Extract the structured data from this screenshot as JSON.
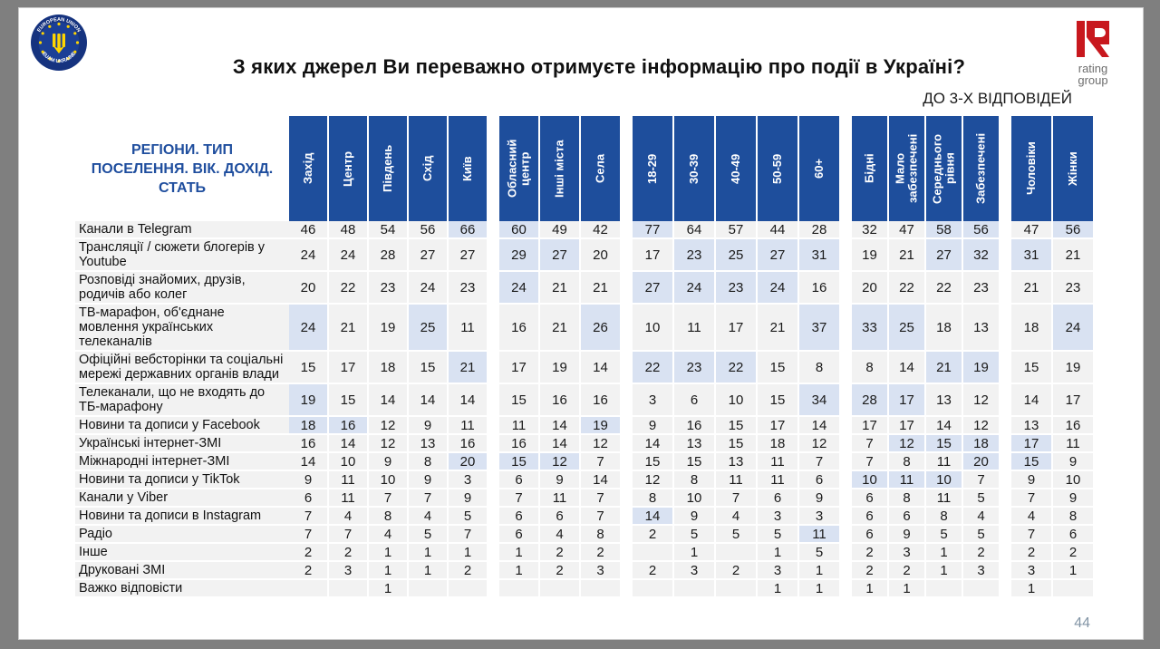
{
  "title": "З яких джерел Ви переважно отримуєте інформацію про події в Україні?",
  "subtitle": "ДО 3-Х ВІДПОВІДЕЙ",
  "page_number": "44",
  "logos": {
    "eu_badge_top": "EUROPEAN UNION",
    "eu_badge_bottom": "EUAM UKRAINE",
    "rating_letter": "R",
    "rating_text_line1": "rating",
    "rating_text_line2": "group"
  },
  "colors": {
    "header_bg": "#1e4e9c",
    "header_text": "#ffffff",
    "row_header_text": "#1f4e9e",
    "cell_bg": "#f2f2f2",
    "cell_highlight": "#d9e2f2",
    "frame_gray": "#7f7f7f",
    "rating_red": "#c8181e"
  },
  "chart_data": {
    "type": "table",
    "title": "З яких джерел Ви переважно отримуєте інформацію про події в Україні?",
    "note": "ДО 3-Х ВІДПОВІДЕЙ",
    "row_header": "РЕГІОНИ. ТИП ПОСЕЛЕННЯ. ВІК. ДОХІД. СТАТЬ",
    "column_groups": [
      {
        "name": "regions",
        "columns": [
          "Захід",
          "Центр",
          "Південь",
          "Схід",
          "Київ"
        ]
      },
      {
        "name": "settlement-type",
        "columns": [
          "Обласний центр",
          "Інші міста",
          "Села"
        ]
      },
      {
        "name": "age",
        "columns": [
          "18-29",
          "30-39",
          "40-49",
          "50-59",
          "60+"
        ]
      },
      {
        "name": "income",
        "columns": [
          "Бідні",
          "Мало забезпечені",
          "Середнього рівня",
          "Забезпечені"
        ]
      },
      {
        "name": "gender",
        "columns": [
          "Чоловіки",
          "Жінки"
        ]
      }
    ],
    "rows": [
      {
        "label": "Канали в Telegram",
        "values": [
          [
            46,
            48,
            54,
            56,
            66
          ],
          [
            60,
            49,
            42
          ],
          [
            77,
            64,
            57,
            44,
            28
          ],
          [
            32,
            47,
            58,
            56
          ],
          [
            47,
            56
          ]
        ],
        "highlights": [
          [
            4
          ],
          [
            0
          ],
          [
            0
          ],
          [
            2,
            3
          ],
          [
            1
          ]
        ]
      },
      {
        "label": "Трансляції / сюжети блогерів у Youtube",
        "values": [
          [
            24,
            24,
            28,
            27,
            27
          ],
          [
            29,
            27,
            20
          ],
          [
            17,
            23,
            25,
            27,
            31
          ],
          [
            19,
            21,
            27,
            32
          ],
          [
            31,
            21
          ]
        ],
        "highlights": [
          [],
          [
            0,
            1
          ],
          [
            1,
            2,
            3,
            4
          ],
          [
            2,
            3
          ],
          [
            0
          ]
        ]
      },
      {
        "label": "Розповіді знайомих, друзів, родичів або колег",
        "values": [
          [
            20,
            22,
            23,
            24,
            23
          ],
          [
            24,
            21,
            21
          ],
          [
            27,
            24,
            23,
            24,
            16
          ],
          [
            20,
            22,
            22,
            23
          ],
          [
            21,
            23
          ]
        ],
        "highlights": [
          [],
          [
            0
          ],
          [
            0,
            1,
            2,
            3
          ],
          [],
          []
        ]
      },
      {
        "label": "ТВ-марафон, об'єднане мовлення українських телеканалів",
        "values": [
          [
            24,
            21,
            19,
            25,
            11
          ],
          [
            16,
            21,
            26
          ],
          [
            10,
            11,
            17,
            21,
            37
          ],
          [
            33,
            25,
            18,
            13
          ],
          [
            18,
            24
          ]
        ],
        "highlights": [
          [
            0,
            3
          ],
          [
            2
          ],
          [
            4
          ],
          [
            0,
            1
          ],
          [
            1
          ]
        ]
      },
      {
        "label": "Офіційні вебсторінки та соціальні мережі державних органів влади",
        "values": [
          [
            15,
            17,
            18,
            15,
            21
          ],
          [
            17,
            19,
            14
          ],
          [
            22,
            23,
            22,
            15,
            8
          ],
          [
            8,
            14,
            21,
            19
          ],
          [
            15,
            19
          ]
        ],
        "highlights": [
          [
            4
          ],
          [],
          [
            0,
            1,
            2
          ],
          [
            2,
            3
          ],
          []
        ]
      },
      {
        "label": "Телеканали, що не входять до ТБ-марафону",
        "values": [
          [
            19,
            15,
            14,
            14,
            14
          ],
          [
            15,
            16,
            16
          ],
          [
            3,
            6,
            10,
            15,
            34
          ],
          [
            28,
            17,
            13,
            12
          ],
          [
            14,
            17
          ]
        ],
        "highlights": [
          [
            0
          ],
          [],
          [
            4
          ],
          [
            0,
            1
          ],
          []
        ]
      },
      {
        "label": "Новини та дописи у Facebook",
        "values": [
          [
            18,
            16,
            12,
            9,
            11
          ],
          [
            11,
            14,
            19
          ],
          [
            9,
            16,
            15,
            17,
            14
          ],
          [
            17,
            17,
            14,
            12
          ],
          [
            13,
            16
          ]
        ],
        "highlights": [
          [
            0,
            1
          ],
          [
            2
          ],
          [],
          [],
          []
        ]
      },
      {
        "label": "Українські інтернет-ЗМІ",
        "values": [
          [
            16,
            14,
            12,
            13,
            16
          ],
          [
            16,
            14,
            12
          ],
          [
            14,
            13,
            15,
            18,
            12
          ],
          [
            7,
            12,
            15,
            18
          ],
          [
            17,
            11
          ]
        ],
        "highlights": [
          [],
          [],
          [],
          [
            1,
            2,
            3
          ],
          [
            0
          ]
        ]
      },
      {
        "label": "Міжнародні інтернет-ЗМІ",
        "values": [
          [
            14,
            10,
            9,
            8,
            20
          ],
          [
            15,
            12,
            7
          ],
          [
            15,
            15,
            13,
            11,
            7
          ],
          [
            7,
            8,
            11,
            20
          ],
          [
            15,
            9
          ]
        ],
        "highlights": [
          [
            4
          ],
          [
            0,
            1
          ],
          [],
          [
            3
          ],
          [
            0
          ]
        ]
      },
      {
        "label": "Новини та дописи у TikTok",
        "values": [
          [
            9,
            11,
            10,
            9,
            3
          ],
          [
            6,
            9,
            14
          ],
          [
            12,
            8,
            11,
            11,
            6
          ],
          [
            10,
            11,
            10,
            7
          ],
          [
            9,
            10
          ]
        ],
        "highlights": [
          [],
          [],
          [],
          [
            0,
            1,
            2
          ],
          []
        ]
      },
      {
        "label": "Канали у Viber",
        "values": [
          [
            6,
            11,
            7,
            7,
            9
          ],
          [
            7,
            11,
            7
          ],
          [
            8,
            10,
            7,
            6,
            9
          ],
          [
            6,
            8,
            11,
            5
          ],
          [
            7,
            9
          ]
        ],
        "highlights": [
          [],
          [],
          [],
          [],
          []
        ]
      },
      {
        "label": "Новини та дописи в Instagram",
        "values": [
          [
            7,
            4,
            8,
            4,
            5
          ],
          [
            6,
            6,
            7
          ],
          [
            14,
            9,
            4,
            3,
            3
          ],
          [
            6,
            6,
            8,
            4
          ],
          [
            4,
            8
          ]
        ],
        "highlights": [
          [],
          [],
          [
            0
          ],
          [],
          []
        ]
      },
      {
        "label": "Радіо",
        "values": [
          [
            7,
            7,
            4,
            5,
            7
          ],
          [
            6,
            4,
            8
          ],
          [
            2,
            5,
            5,
            5,
            11
          ],
          [
            6,
            9,
            5,
            5
          ],
          [
            7,
            6
          ]
        ],
        "highlights": [
          [],
          [],
          [
            4
          ],
          [],
          []
        ]
      },
      {
        "label": "Інше",
        "values": [
          [
            2,
            2,
            1,
            1,
            1
          ],
          [
            1,
            2,
            2
          ],
          [
            null,
            1,
            null,
            1,
            5
          ],
          [
            2,
            3,
            1,
            2
          ],
          [
            2,
            2
          ]
        ],
        "highlights": [
          [],
          [],
          [],
          [],
          []
        ]
      },
      {
        "label": "Друковані ЗМІ",
        "values": [
          [
            2,
            3,
            1,
            1,
            2
          ],
          [
            1,
            2,
            3
          ],
          [
            2,
            3,
            2,
            3,
            1
          ],
          [
            2,
            2,
            1,
            3
          ],
          [
            3,
            1
          ]
        ],
        "highlights": [
          [],
          [],
          [],
          [],
          []
        ]
      },
      {
        "label": "Важко відповісти",
        "values": [
          [
            null,
            null,
            1,
            null,
            null
          ],
          [
            null,
            null,
            null
          ],
          [
            null,
            null,
            null,
            1,
            1
          ],
          [
            1,
            1,
            null,
            null
          ],
          [
            1,
            null
          ]
        ],
        "highlights": [
          [],
          [],
          [],
          [],
          []
        ]
      }
    ]
  }
}
